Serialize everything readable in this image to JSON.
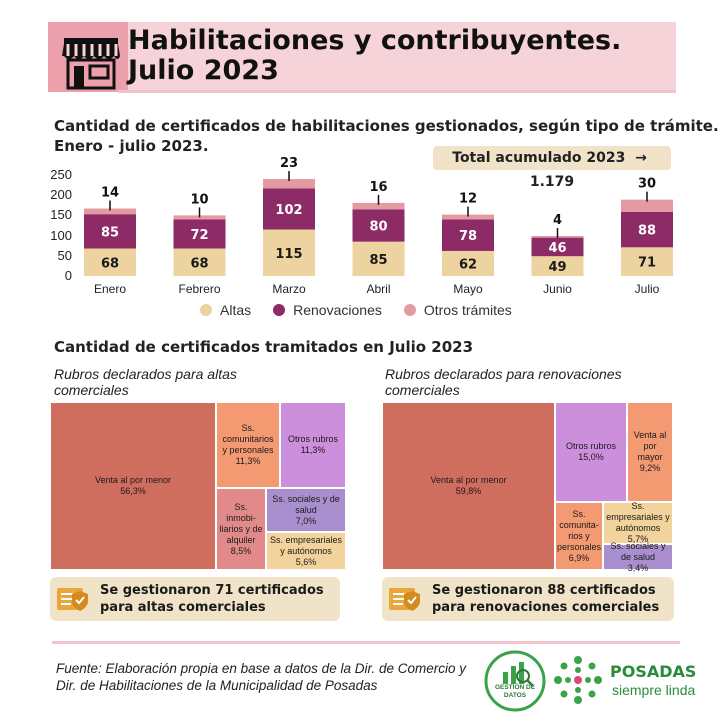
{
  "header": {
    "title_line1": "Habilitaciones y contribuyentes.",
    "title_line2": "Julio 2023"
  },
  "section1": {
    "title_line1": "Cantidad de certificados de habilitaciones gestionados, según tipo de trámite.",
    "title_line2": "Enero - julio 2023.",
    "total_label": "Total acumulado 2023",
    "total_arrow": "→",
    "total_value": "1.179"
  },
  "chart_data": {
    "type": "bar",
    "stacked": true,
    "categories": [
      "Enero",
      "Febrero",
      "Marzo",
      "Abril",
      "Mayo",
      "Junio",
      "Julio"
    ],
    "series": [
      {
        "name": "Altas",
        "color": "#ecd39f",
        "values": [
          68,
          68,
          115,
          85,
          62,
          49,
          71
        ]
      },
      {
        "name": "Renovaciones",
        "color": "#8c2b66",
        "values": [
          85,
          72,
          102,
          80,
          78,
          46,
          88
        ]
      },
      {
        "name": "Otros trámites",
        "color": "#e49aa1",
        "values": [
          14,
          10,
          23,
          16,
          12,
          4,
          30
        ]
      }
    ],
    "yticks": [
      "250",
      "200",
      "150",
      "100",
      "50",
      "0"
    ],
    "ylim": [
      0,
      250
    ],
    "legend_position": "bottom"
  },
  "section2": {
    "title": "Cantidad de certificados tramitados en Julio 2023"
  },
  "treemap_altas": {
    "subtitle": "Rubros declarados para altas comerciales",
    "cells": [
      {
        "label": "Venta al por menor",
        "pct": "56,3%",
        "color": "#cf6d5e"
      },
      {
        "label": "Ss. comunitarios y personales",
        "pct": "11,3%",
        "color": "#f39a73"
      },
      {
        "label": "Otros rubros",
        "pct": "11,3%",
        "color": "#cc8fdc"
      },
      {
        "label": "Ss. inmobi- liarios y de alquiler",
        "pct": "8,5%",
        "color": "#e28a8a"
      },
      {
        "label": "Ss. sociales y de salud",
        "pct": "7,0%",
        "color": "#a98fce"
      },
      {
        "label": "Ss. empresariales y autónomos",
        "pct": "5,6%",
        "color": "#f2d39c"
      }
    ],
    "note": "Se gestionaron 71 certificados para altas comerciales"
  },
  "treemap_renov": {
    "subtitle": "Rubros declarados para renovaciones comerciales",
    "cells": [
      {
        "label": "Venta al por menor",
        "pct": "59,8%",
        "color": "#cf6d5e"
      },
      {
        "label": "Otros rubros",
        "pct": "15,0%",
        "color": "#cc8fdc"
      },
      {
        "label": "Venta al por mayor",
        "pct": "9,2%",
        "color": "#f39a73"
      },
      {
        "label": "Ss. comunita- rios y personales",
        "pct": "6,9%",
        "color": "#f39a73"
      },
      {
        "label": "Ss. empresariales y autónomos",
        "pct": "5,7%",
        "color": "#f2d39c"
      },
      {
        "label": "Ss. sociales y de salud",
        "pct": "3,4%",
        "color": "#a98fce"
      }
    ],
    "note": "Se gestionaron 88 certificados para renovaciones comerciales"
  },
  "footer": {
    "source": "Fuente: Elaboración propia en base a datos de la Dir. de Comercio  y Dir. de Habilitaciones de la Municipalidad de Posadas",
    "badge_text": "GESTIÓN DE DATOS",
    "brand_name": "POSADAS",
    "brand_tagline": "siempre linda"
  },
  "colors": {
    "accent_pink": "#f6d3d8",
    "accent_dark_pink": "#eba0ab",
    "cream": "#f0e3c7",
    "green": "#3aa34a"
  }
}
